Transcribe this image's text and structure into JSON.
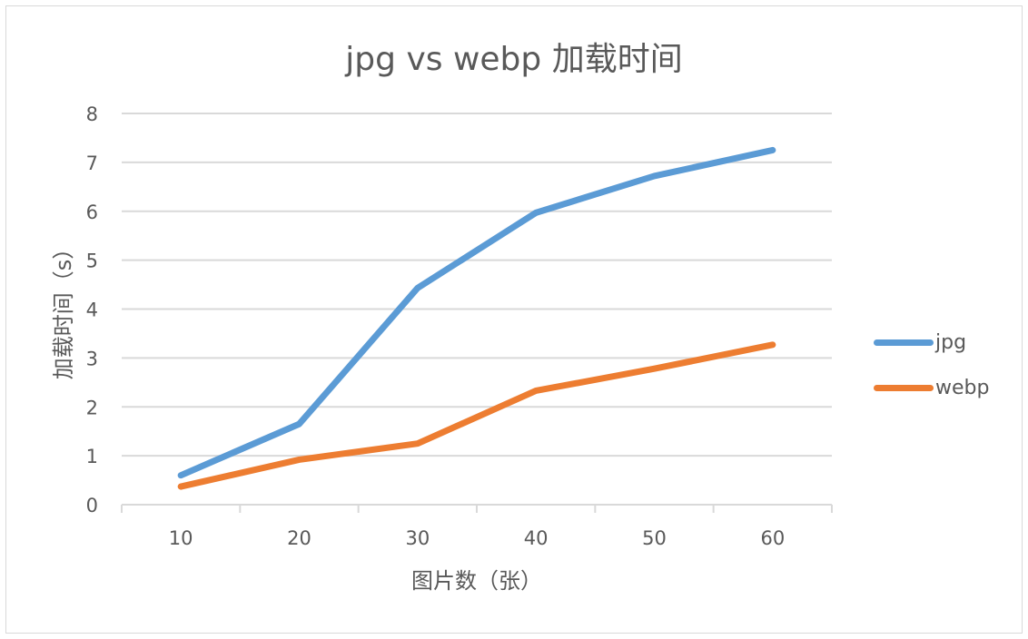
{
  "chart_data": {
    "type": "line",
    "title": "jpg vs webp 加载时间",
    "xlabel": "图片数（张）",
    "ylabel": "加载时间（s）",
    "categories": [
      "10",
      "20",
      "30",
      "40",
      "50",
      "60"
    ],
    "series": [
      {
        "name": "jpg",
        "color": "#5B9BD5",
        "values": [
          0.6,
          1.65,
          4.43,
          5.97,
          6.72,
          7.25
        ]
      },
      {
        "name": "webp",
        "color": "#ED7D31",
        "values": [
          0.37,
          0.92,
          1.25,
          2.33,
          2.78,
          3.27
        ]
      }
    ],
    "ylim": [
      0,
      8
    ],
    "yticks": [
      "0",
      "1",
      "2",
      "3",
      "4",
      "5",
      "6",
      "7",
      "8"
    ],
    "grid": true,
    "legend_position": "right"
  }
}
